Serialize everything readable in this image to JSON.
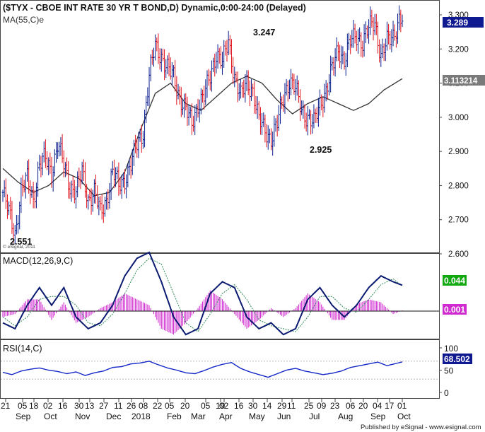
{
  "header": {
    "title": "($TYX - CBOE INT RATE 30 YR T BOND,D) Dynamic,0:00-24:00 (Delayed)",
    "ma_label": "MA(55,C)e",
    "watermark": "© eSignal, 2011"
  },
  "footer": {
    "published": "Published by eSignal - www.esignal.com"
  },
  "colors": {
    "up_bar": "#0a1f8f",
    "down_bar": "#e0141e",
    "ma_line": "#333333",
    "macd_line": "#0a1a70",
    "signal_line": "#2e8b57",
    "histogram": "#d02bd0",
    "rsi_line": "#1428c8",
    "macd_badge": "#12a812",
    "hist_badge": "#d02bd0",
    "rsi_badge": "#101a90",
    "last_badge": "#101a90",
    "ma_badge": "#7a7a7a"
  },
  "chart_data": [
    {
      "type": "bar",
      "subtype": "ohlc",
      "title": "($TYX - CBOE INT RATE 30 YR T BOND,D) Dynamic,0:00-24:00 (Delayed)",
      "y_ticks": [
        "3.300",
        "3.200",
        "3.100",
        "3.000",
        "2.900",
        "2.800",
        "2.700",
        "2.600"
      ],
      "ylim": [
        2.6,
        3.3
      ],
      "x_ticks": [
        "21",
        "05",
        "18",
        "02",
        "16",
        "30",
        "13",
        "27",
        "11",
        "26",
        "08",
        "22",
        "05",
        "20",
        "05",
        "19",
        "02",
        "16",
        "30",
        "14",
        "29",
        "11",
        "25",
        "09",
        "23",
        "06",
        "20",
        "04",
        "17",
        "01"
      ],
      "month_labels": [
        "Sep",
        "Oct",
        "Nov",
        "Dec",
        "2018",
        "Feb",
        "Mar",
        "Apr",
        "May",
        "Jun",
        "Jul",
        "Aug",
        "Sep",
        "Oct"
      ],
      "annotations": [
        "3.247",
        "2.925",
        "2.551"
      ],
      "last_value": "3.289",
      "ma_value": "3.113214",
      "series": [
        {
          "name": "MA(55,C)e",
          "x": [
            0,
            10,
            20,
            30,
            40,
            50,
            60,
            70,
            80,
            90,
            100,
            110,
            120,
            130,
            140,
            150,
            160,
            170,
            180,
            190,
            200,
            210,
            220,
            230,
            240,
            250,
            262
          ],
          "values": [
            2.85,
            2.81,
            2.78,
            2.8,
            2.84,
            2.82,
            2.77,
            2.78,
            2.84,
            2.96,
            3.07,
            3.1,
            3.04,
            3.02,
            3.06,
            3.1,
            3.12,
            3.1,
            3.05,
            3.01,
            3.04,
            3.06,
            3.04,
            3.02,
            3.04,
            3.08,
            3.113
          ]
        },
        {
          "name": "Close",
          "x": [
            0,
            4,
            8,
            12,
            16,
            20,
            24,
            28,
            32,
            36,
            40,
            44,
            48,
            52,
            56,
            60,
            64,
            68,
            72,
            76,
            80,
            84,
            88,
            92,
            96,
            100,
            104,
            108,
            112,
            116,
            120,
            124,
            128,
            132,
            136,
            140,
            144,
            148,
            152,
            156,
            160,
            164,
            168,
            172,
            176,
            180,
            184,
            188,
            192,
            196,
            200,
            204,
            208,
            212,
            216,
            220,
            224,
            228,
            232,
            236,
            240,
            244,
            248,
            252,
            256,
            260,
            262
          ],
          "values": [
            2.78,
            2.72,
            2.66,
            2.78,
            2.82,
            2.76,
            2.86,
            2.88,
            2.84,
            2.92,
            2.86,
            2.8,
            2.78,
            2.84,
            2.76,
            2.78,
            2.72,
            2.76,
            2.84,
            2.8,
            2.82,
            2.86,
            2.92,
            2.96,
            3.12,
            3.21,
            3.18,
            3.14,
            3.12,
            3.06,
            3.02,
            2.98,
            3.04,
            3.06,
            3.12,
            3.19,
            3.16,
            3.22,
            3.12,
            3.06,
            3.1,
            3.08,
            2.99,
            2.96,
            2.94,
            2.98,
            3.06,
            3.11,
            3.08,
            3.02,
            3.0,
            2.98,
            3.04,
            3.08,
            3.14,
            3.2,
            3.17,
            3.22,
            3.24,
            3.22,
            3.26,
            3.28,
            3.18,
            3.22,
            3.24,
            3.289,
            3.289
          ]
        }
      ]
    },
    {
      "type": "line",
      "title": "MACD(12,26,9,C)",
      "macd_value": "0.044",
      "hist_value": "0.001",
      "series": [
        {
          "name": "MACD",
          "x": [
            0,
            8,
            16,
            24,
            32,
            40,
            48,
            56,
            64,
            72,
            80,
            88,
            96,
            104,
            112,
            120,
            128,
            136,
            144,
            152,
            160,
            168,
            176,
            184,
            192,
            200,
            208,
            216,
            224,
            232,
            240,
            248,
            256,
            262
          ],
          "values": [
            -0.02,
            -0.03,
            0.01,
            0.04,
            0.01,
            0.04,
            -0.01,
            -0.03,
            -0.02,
            0.01,
            0.06,
            0.09,
            0.1,
            0.05,
            -0.01,
            -0.04,
            -0.03,
            0.03,
            0.05,
            0.04,
            -0.01,
            -0.03,
            -0.02,
            -0.04,
            -0.03,
            0.02,
            0.04,
            0.01,
            -0.01,
            0.01,
            0.04,
            0.06,
            0.05,
            0.044
          ]
        },
        {
          "name": "Signal",
          "x": [
            0,
            8,
            16,
            24,
            32,
            40,
            48,
            56,
            64,
            72,
            80,
            88,
            96,
            104,
            112,
            120,
            128,
            136,
            144,
            152,
            160,
            168,
            176,
            184,
            192,
            200,
            208,
            216,
            224,
            232,
            240,
            248,
            256,
            262
          ],
          "values": [
            -0.01,
            -0.025,
            -0.01,
            0.02,
            0.025,
            0.025,
            0.01,
            -0.02,
            -0.025,
            -0.005,
            0.03,
            0.07,
            0.09,
            0.08,
            0.03,
            -0.02,
            -0.035,
            -0.005,
            0.03,
            0.045,
            0.02,
            -0.015,
            -0.025,
            -0.03,
            -0.035,
            -0.01,
            0.025,
            0.025,
            0.005,
            -0.002,
            0.02,
            0.045,
            0.055,
            0.043
          ]
        }
      ]
    },
    {
      "type": "line",
      "title": "RSI(14,C)",
      "y_ticks": [
        "100",
        "50",
        "0"
      ],
      "ylim": [
        0,
        100
      ],
      "last_value": "68.502",
      "series": [
        {
          "name": "RSI",
          "x": [
            0,
            6,
            12,
            18,
            24,
            30,
            36,
            42,
            48,
            54,
            60,
            66,
            72,
            78,
            84,
            90,
            96,
            102,
            108,
            114,
            120,
            126,
            132,
            138,
            144,
            150,
            156,
            162,
            168,
            174,
            180,
            186,
            192,
            198,
            204,
            210,
            216,
            222,
            228,
            234,
            240,
            246,
            252,
            258,
            262
          ],
          "values": [
            45,
            40,
            48,
            52,
            55,
            50,
            47,
            42,
            46,
            38,
            44,
            48,
            56,
            58,
            64,
            66,
            70,
            62,
            55,
            50,
            44,
            42,
            49,
            57,
            63,
            67,
            54,
            46,
            40,
            34,
            42,
            50,
            54,
            48,
            44,
            40,
            43,
            48,
            56,
            60,
            64,
            68,
            60,
            65,
            68.5
          ]
        }
      ]
    }
  ]
}
